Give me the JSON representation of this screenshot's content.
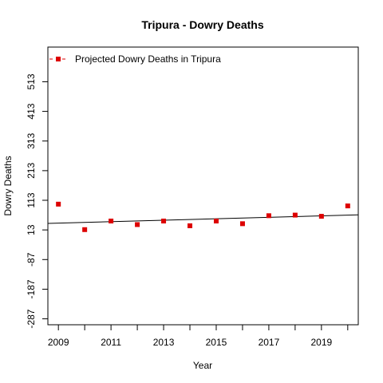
{
  "chart_data": {
    "type": "scatter",
    "title": "Tripura  -  Dowry Deaths",
    "xlabel": "Year",
    "ylabel": "Dowry Deaths",
    "xlim": [
      2008.6,
      2020.4
    ],
    "ylim": [
      -307,
      630
    ],
    "x_ticks": [
      2009,
      2010,
      2011,
      2012,
      2013,
      2014,
      2015,
      2016,
      2017,
      2018,
      2019,
      2020
    ],
    "x_tick_labels": [
      "2009",
      "",
      "2011",
      "",
      "2013",
      "",
      "2015",
      "",
      "2017",
      "",
      "2019",
      ""
    ],
    "y_ticks": [
      -287,
      -187,
      -87,
      13,
      113,
      213,
      313,
      413,
      513
    ],
    "y_tick_labels": [
      "-287",
      "-187",
      "-87",
      "13",
      "113",
      "213",
      "313",
      "413",
      "513"
    ],
    "series": [
      {
        "name": "Projected  Dowry Deaths  in  Tripura",
        "color": "#dd0000",
        "marker": "square",
        "x": [
          2009,
          2010,
          2011,
          2012,
          2013,
          2014,
          2015,
          2016,
          2017,
          2018,
          2019,
          2020
        ],
        "y": [
          100,
          14,
          43,
          31,
          43,
          27,
          43,
          34,
          61,
          63,
          59,
          94
        ]
      }
    ],
    "trend_line": {
      "x": [
        2008.6,
        2020.4
      ],
      "y": [
        35,
        64
      ],
      "color": "#000000"
    },
    "grid": false,
    "legend_position": "top-left"
  }
}
